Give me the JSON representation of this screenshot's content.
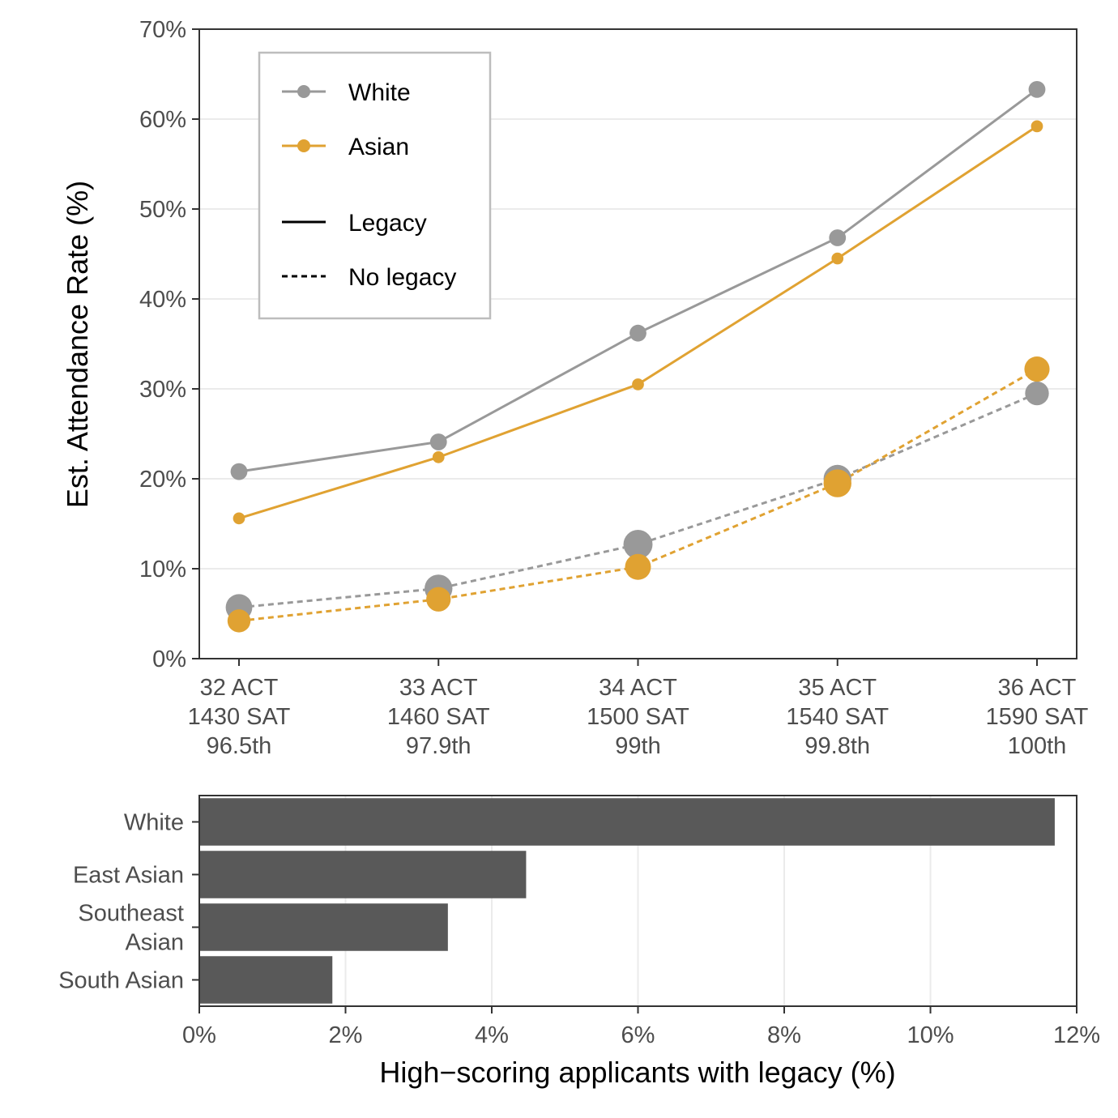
{
  "chart_data": [
    {
      "type": "line",
      "ylabel": "Est. Attendance Rate (%)",
      "ylim": [
        0,
        70
      ],
      "y_ticks": [
        "0%",
        "10%",
        "20%",
        "30%",
        "40%",
        "50%",
        "60%",
        "70%"
      ],
      "y_tick_values": [
        0,
        10,
        20,
        30,
        40,
        50,
        60,
        70
      ],
      "grid": "horizontal",
      "categories": [
        [
          "32 ACT",
          "1430 SAT",
          "96.5th"
        ],
        [
          "33 ACT",
          "1460 SAT",
          "97.9th"
        ],
        [
          "34 ACT",
          "1500 SAT",
          "99th"
        ],
        [
          "35 ACT",
          "1540 SAT",
          "99.8th"
        ],
        [
          "36 ACT",
          "1590 SAT",
          "100th"
        ]
      ],
      "legend": {
        "placement": "top-left",
        "color_entries": [
          {
            "label": "White",
            "color": "#999999"
          },
          {
            "label": "Asian",
            "color": "#E0A232"
          }
        ],
        "linetype_entries": [
          {
            "label": "Legacy",
            "dash": "solid"
          },
          {
            "label": "No legacy",
            "dash": "dotted"
          }
        ]
      },
      "series": [
        {
          "group": "White",
          "legacy": "Legacy",
          "color": "#999999",
          "dash": "solid",
          "values": [
            20.8,
            24.1,
            36.2,
            46.8,
            63.3
          ],
          "point_size": [
            1,
            1,
            1,
            1,
            1
          ]
        },
        {
          "group": "Asian",
          "legacy": "Legacy",
          "color": "#E0A232",
          "dash": "solid",
          "values": [
            15.6,
            22.4,
            30.5,
            44.5,
            59.2
          ],
          "point_size": [
            0.5,
            0.5,
            0.5,
            0.5,
            0.5
          ]
        },
        {
          "group": "White",
          "legacy": "No legacy",
          "color": "#999999",
          "dash": "dotted",
          "values": [
            5.7,
            7.8,
            12.7,
            20.0,
            29.5
          ],
          "point_size": [
            2,
            2.2,
            2.4,
            2.2,
            1.6
          ]
        },
        {
          "group": "Asian",
          "legacy": "No legacy",
          "color": "#E0A232",
          "dash": "dotted",
          "values": [
            4.2,
            6.6,
            10.2,
            19.5,
            32.2
          ],
          "point_size": [
            1.5,
            1.7,
            1.9,
            2.2,
            1.8
          ]
        }
      ]
    },
    {
      "type": "bar",
      "orientation": "horizontal",
      "xlabel": "High−scoring applicants with legacy (%)",
      "xlim": [
        0,
        12
      ],
      "x_ticks": [
        "0%",
        "2%",
        "4%",
        "6%",
        "8%",
        "10%",
        "12%"
      ],
      "x_tick_values": [
        0,
        2,
        4,
        6,
        8,
        10,
        12
      ],
      "grid": "vertical",
      "bar_color": "#595959",
      "categories": [
        [
          "White"
        ],
        [
          "East Asian"
        ],
        [
          "Southeast",
          "Asian"
        ],
        [
          "South Asian"
        ]
      ],
      "values": [
        11.7,
        4.47,
        3.4,
        1.82
      ]
    }
  ]
}
